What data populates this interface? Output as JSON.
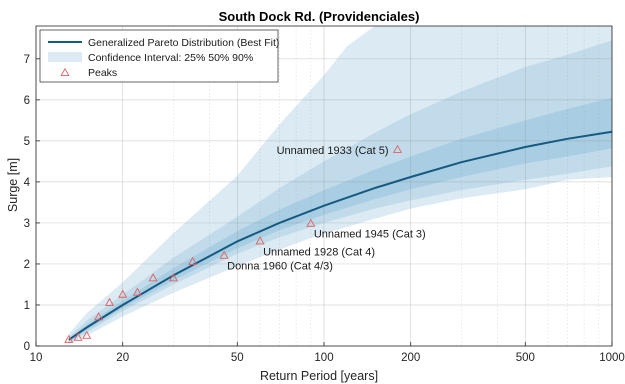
{
  "chart_data": {
    "type": "line",
    "title": "South Dock Rd. (Providenciales)",
    "xlabel": "Return Period [years]",
    "ylabel": "Surge [m]",
    "x_scale": "log",
    "xlim": [
      10,
      1000
    ],
    "ylim": [
      0,
      7.8
    ],
    "grid": true,
    "legend_position": "top-left",
    "x_major_ticks": [
      10,
      20,
      50,
      100,
      200,
      500,
      1000
    ],
    "x_tick_labels": [
      "10",
      "20",
      "50",
      "100",
      "200",
      "500",
      "1000"
    ],
    "x_minor_ticks": [
      30,
      40,
      60,
      70,
      80,
      90,
      300,
      400,
      600,
      700,
      800,
      900
    ],
    "y_ticks": [
      0,
      1,
      2,
      3,
      4,
      5,
      6,
      7
    ],
    "y_tick_labels": [
      "0",
      "1",
      "2",
      "3",
      "4",
      "5",
      "6",
      "7"
    ],
    "legend": {
      "best_fit_label": "Generalized Pareto Distribution (Best Fit)",
      "ci_label": "Confidence Interval: 25% 50% 90%",
      "peaks_label": "Peaks"
    },
    "best_fit": {
      "name": "Generalized Pareto Distribution (Best Fit)",
      "color": "#155a80",
      "x": [
        13,
        15,
        20,
        30,
        50,
        70,
        100,
        150,
        200,
        300,
        500,
        700,
        1000
      ],
      "y": [
        0.15,
        0.45,
        1.0,
        1.72,
        2.55,
        3.0,
        3.42,
        3.85,
        4.12,
        4.48,
        4.85,
        5.05,
        5.22
      ]
    },
    "confidence_bands": [
      {
        "level": "90%",
        "color": "#dbeaf3",
        "x": [
          13,
          15,
          20,
          30,
          50,
          70,
          100,
          120,
          150,
          200,
          300,
          500,
          700,
          1000
        ],
        "lower": [
          0.05,
          0.25,
          0.72,
          1.3,
          1.95,
          2.35,
          2.75,
          2.9,
          3.1,
          3.35,
          3.6,
          3.82,
          4.05,
          4.12
        ],
        "upper": [
          0.3,
          0.8,
          1.55,
          2.75,
          4.15,
          5.4,
          6.6,
          7.3,
          7.8,
          7.8,
          7.8,
          7.8,
          7.8,
          7.8
        ]
      },
      {
        "level": "50%",
        "color": "#c1dbea",
        "x": [
          13,
          15,
          20,
          30,
          50,
          70,
          100,
          150,
          200,
          300,
          500,
          700,
          1000
        ],
        "lower": [
          0.08,
          0.33,
          0.85,
          1.5,
          2.25,
          2.65,
          3.0,
          3.35,
          3.55,
          3.8,
          4.05,
          4.2,
          4.38
        ],
        "upper": [
          0.22,
          0.62,
          1.25,
          2.15,
          3.15,
          3.85,
          4.5,
          5.2,
          5.65,
          6.2,
          6.8,
          7.1,
          7.45
        ]
      },
      {
        "level": "25%",
        "color": "#a9cde2",
        "x": [
          13,
          15,
          20,
          30,
          50,
          70,
          100,
          150,
          200,
          300,
          500,
          700,
          1000
        ],
        "lower": [
          0.12,
          0.38,
          0.92,
          1.6,
          2.38,
          2.82,
          3.2,
          3.58,
          3.82,
          4.12,
          4.45,
          4.62,
          4.82
        ],
        "upper": [
          0.18,
          0.52,
          1.1,
          1.9,
          2.8,
          3.32,
          3.8,
          4.3,
          4.62,
          5.05,
          5.5,
          5.78,
          6.05
        ]
      }
    ],
    "peaks": {
      "name": "Peaks",
      "color": "#e06060",
      "x": [
        13,
        14,
        15,
        16.5,
        18,
        20,
        22.5,
        25.5,
        30,
        35,
        45,
        60,
        90,
        180
      ],
      "y": [
        0.15,
        0.2,
        0.25,
        0.7,
        1.05,
        1.25,
        1.3,
        1.65,
        1.65,
        2.05,
        2.2,
        2.55,
        2.98,
        4.78
      ]
    },
    "annotations": [
      {
        "text": "Unnamed 1933 (Cat 5)",
        "x": 180,
        "y": 4.78,
        "position": "left"
      },
      {
        "text": "Unnamed 1945 (Cat 3)",
        "x": 90,
        "y": 2.98,
        "position": "below-right"
      },
      {
        "text": "Unnamed 1928 (Cat 4)",
        "x": 60,
        "y": 2.55,
        "position": "below-right"
      },
      {
        "text": "Donna 1960 (Cat 4/3)",
        "x": 45,
        "y": 2.2,
        "position": "below-right"
      }
    ]
  }
}
